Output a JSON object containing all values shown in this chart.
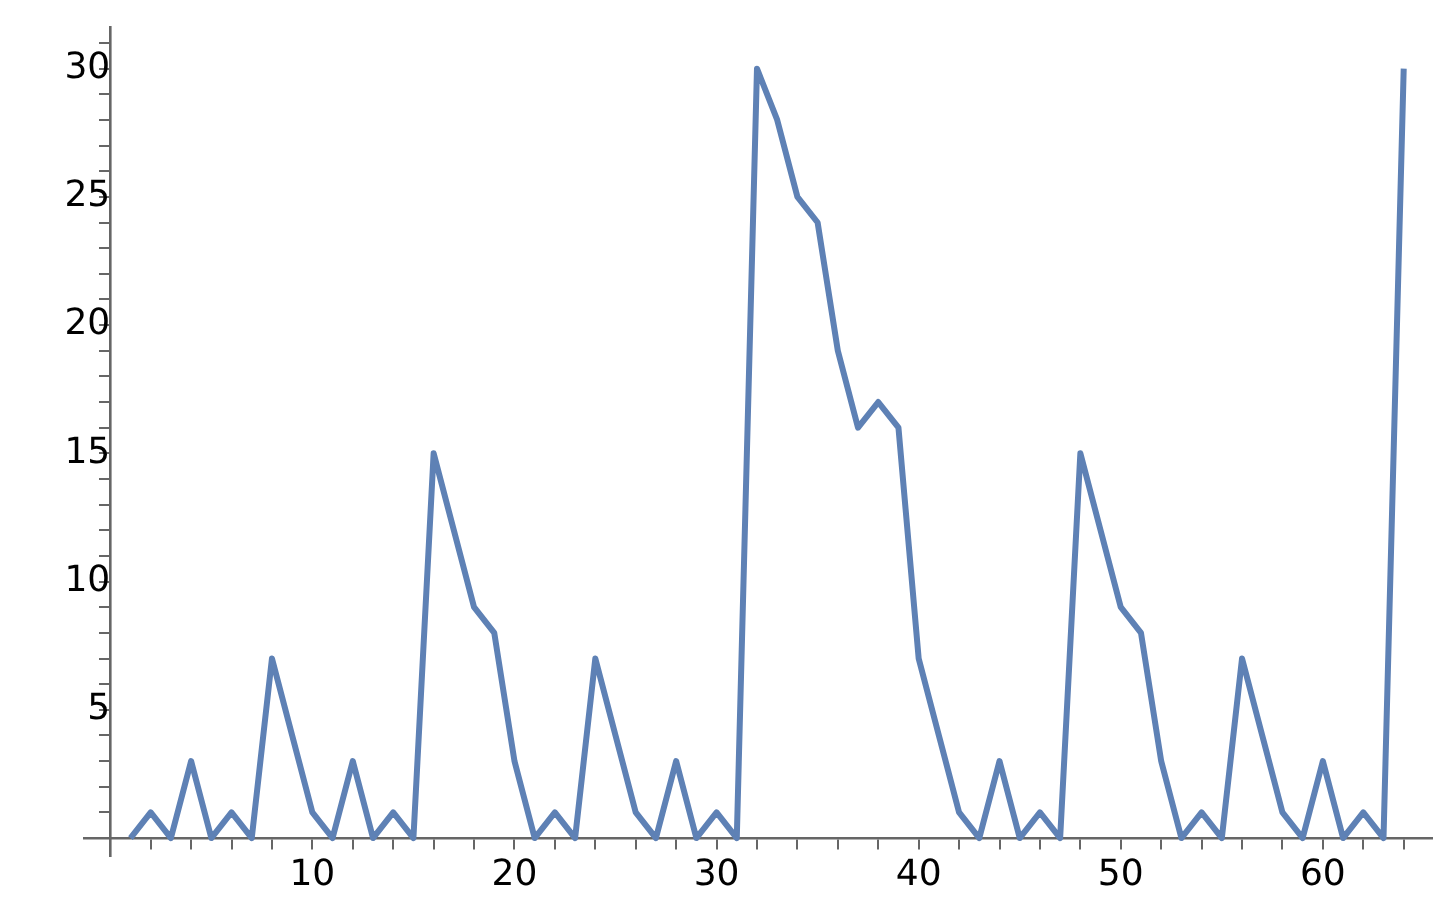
{
  "chart_data": {
    "type": "line",
    "x": [
      1,
      2,
      3,
      4,
      5,
      6,
      7,
      8,
      9,
      10,
      11,
      12,
      13,
      14,
      15,
      16,
      17,
      18,
      19,
      20,
      21,
      22,
      23,
      24,
      25,
      26,
      27,
      28,
      29,
      30,
      31,
      32,
      33,
      34,
      35,
      36,
      37,
      38,
      39,
      40,
      41,
      42,
      43,
      44,
      45,
      46,
      47,
      48,
      49,
      50,
      51,
      52,
      53,
      54,
      55,
      56,
      57,
      58,
      59,
      60,
      61,
      62,
      63,
      64
    ],
    "series": [
      {
        "color": "#5e81b5",
        "values": [
          0,
          1,
          0,
          3,
          0,
          1,
          0,
          7,
          4,
          1,
          0,
          3,
          0,
          1,
          0,
          15,
          12,
          9,
          8,
          3,
          0,
          1,
          0,
          7,
          4,
          1,
          0,
          3,
          0,
          1,
          0,
          30,
          28,
          25,
          24,
          19,
          16,
          17,
          16,
          7,
          4,
          1,
          0,
          3,
          0,
          1,
          0,
          15,
          12,
          9,
          8,
          3,
          0,
          1,
          0,
          7,
          4,
          1,
          0,
          3,
          0,
          1,
          0,
          30
        ]
      }
    ],
    "xlim": [
      -1.3,
      65.4
    ],
    "ylim": [
      -0.7,
      31.6
    ],
    "xticks": [
      {
        "value": 2,
        "label": null
      },
      {
        "value": 4,
        "label": null
      },
      {
        "value": 6,
        "label": null
      },
      {
        "value": 8,
        "label": null
      },
      10,
      {
        "value": 12,
        "label": null
      },
      {
        "value": 14,
        "label": null
      },
      {
        "value": 16,
        "label": null
      },
      {
        "value": 18,
        "label": null
      },
      20,
      {
        "value": 22,
        "label": null
      },
      {
        "value": 24,
        "label": null
      },
      {
        "value": 26,
        "label": null
      },
      {
        "value": 28,
        "label": null
      },
      30,
      {
        "value": 32,
        "label": null
      },
      {
        "value": 34,
        "label": null
      },
      {
        "value": 36,
        "label": null
      },
      {
        "value": 38,
        "label": null
      },
      40,
      {
        "value": 42,
        "label": null
      },
      {
        "value": 44,
        "label": null
      },
      {
        "value": 46,
        "label": null
      },
      {
        "value": 48,
        "label": null
      },
      50,
      {
        "value": 52,
        "label": null
      },
      {
        "value": 54,
        "label": null
      },
      {
        "value": 56,
        "label": null
      },
      {
        "value": 58,
        "label": null
      },
      60,
      {
        "value": 62,
        "label": null
      },
      {
        "value": 64,
        "label": null
      }
    ],
    "yticks": [
      {
        "value": 1,
        "label": null
      },
      {
        "value": 2,
        "label": null
      },
      {
        "value": 3,
        "label": null
      },
      {
        "value": 4,
        "label": null
      },
      5,
      {
        "value": 6,
        "label": null
      },
      {
        "value": 7,
        "label": null
      },
      {
        "value": 8,
        "label": null
      },
      {
        "value": 9,
        "label": null
      },
      10,
      {
        "value": 11,
        "label": null
      },
      {
        "value": 12,
        "label": null
      },
      {
        "value": 13,
        "label": null
      },
      {
        "value": 14,
        "label": null
      },
      15,
      {
        "value": 16,
        "label": null
      },
      {
        "value": 17,
        "label": null
      },
      {
        "value": 18,
        "label": null
      },
      {
        "value": 19,
        "label": null
      },
      20,
      {
        "value": 21,
        "label": null
      },
      {
        "value": 22,
        "label": null
      },
      {
        "value": 23,
        "label": null
      },
      {
        "value": 24,
        "label": null
      },
      25,
      {
        "value": 26,
        "label": null
      },
      {
        "value": 27,
        "label": null
      },
      {
        "value": 28,
        "label": null
      },
      {
        "value": 29,
        "label": null
      },
      30,
      {
        "value": 31,
        "label": null
      }
    ],
    "grid": false,
    "legend": false,
    "marker": "none",
    "line_style": "solid"
  }
}
